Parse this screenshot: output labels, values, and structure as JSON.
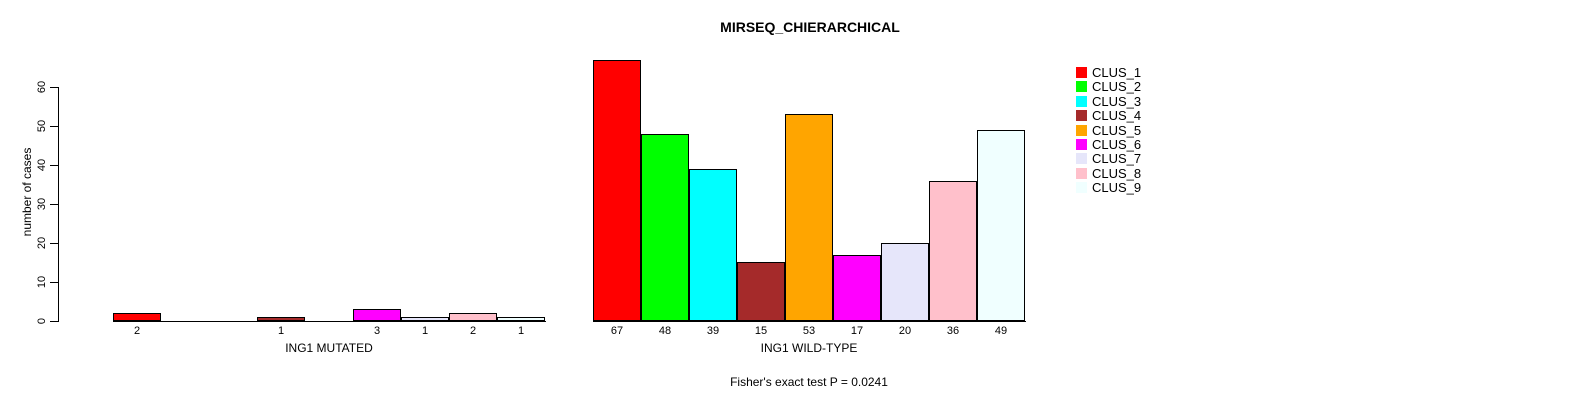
{
  "chart_data": {
    "type": "bar",
    "title": "MIRSEQ_CHIERARCHICAL",
    "ylabel": "number of cases",
    "ylim": [
      0,
      60
    ],
    "yticks": [
      0,
      10,
      20,
      30,
      40,
      50,
      60
    ],
    "grid": false,
    "legend_position": "top-right",
    "legend": [
      {
        "label": "CLUS_1",
        "color": "#FF0000"
      },
      {
        "label": "CLUS_2",
        "color": "#00FF00"
      },
      {
        "label": "CLUS_3",
        "color": "#00FFFF"
      },
      {
        "label": "CLUS_4",
        "color": "#A52A2A"
      },
      {
        "label": "CLUS_5",
        "color": "#FFA500"
      },
      {
        "label": "CLUS_6",
        "color": "#FF00FF"
      },
      {
        "label": "CLUS_7",
        "color": "#E6E6FA"
      },
      {
        "label": "CLUS_8",
        "color": "#FFC0CB"
      },
      {
        "label": "CLUS_9",
        "color": "#F0FFFF"
      }
    ],
    "categories": [
      "CLUS_1",
      "CLUS_2",
      "CLUS_3",
      "CLUS_4",
      "CLUS_5",
      "CLUS_6",
      "CLUS_7",
      "CLUS_8",
      "CLUS_9"
    ],
    "groups": [
      {
        "label": "ING1 MUTATED",
        "values": [
          2,
          0,
          0,
          1,
          0,
          3,
          1,
          2,
          1
        ]
      },
      {
        "label": "ING1 WILD-TYPE",
        "values": [
          67,
          48,
          39,
          15,
          53,
          17,
          20,
          36,
          49
        ]
      }
    ],
    "annotation": "Fisher's exact test P = 0.0241",
    "bar_border_color": "#000000",
    "value_labels_hidden_when_zero": true
  }
}
